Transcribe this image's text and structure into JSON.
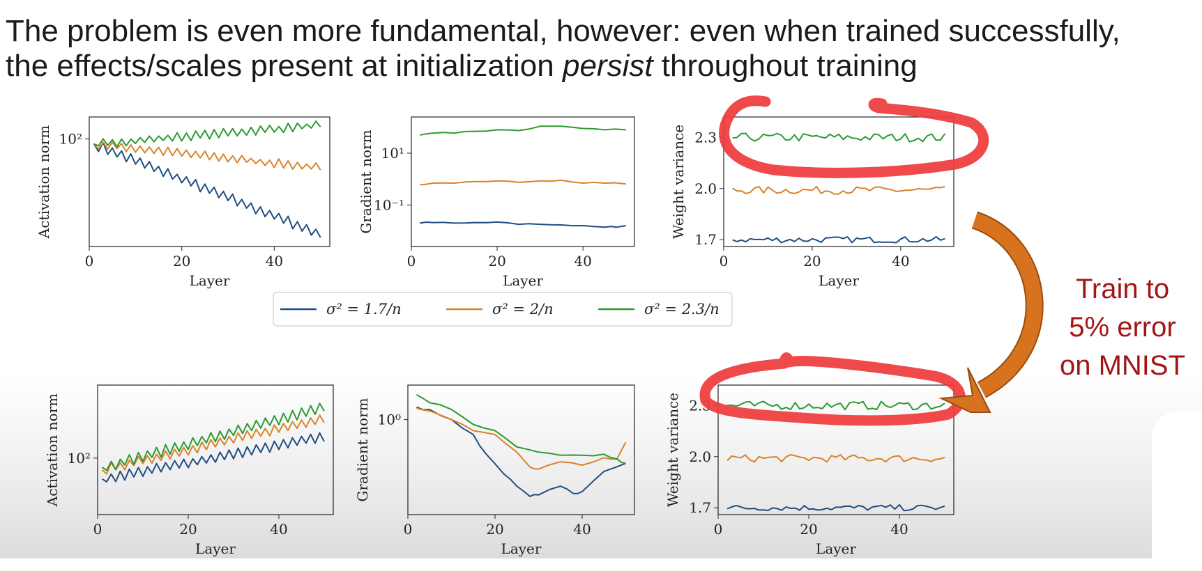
{
  "headline": {
    "line1": "The problem is even more fundamental, however: even when trained successfully,",
    "line2_before": "the effects/scales present at initialization ",
    "line2_emphasis": "persist",
    "line2_after": " throughout training"
  },
  "side_note": {
    "line1": "Train to",
    "line2": "5% error",
    "line3": "on MNIST"
  },
  "colors": {
    "blue": "#1f4e80",
    "orange": "#d9822b",
    "green": "#2a9a32",
    "highlight_red": "#ee3b3b",
    "arrow_orange": "#d7731f",
    "note_red": "#a31515"
  },
  "legend": [
    {
      "series": "sigma_1_7",
      "label": "σ² = 1.7/n"
    },
    {
      "series": "sigma_2",
      "label": "σ² = 2/n"
    },
    {
      "series": "sigma_2_3",
      "label": "σ² = 2.3/n"
    }
  ],
  "chart_data": [
    {
      "type": "line",
      "panel": "top-left",
      "xlabel": "Layer",
      "ylabel": "Activation norm",
      "xticks": [
        "0",
        "20",
        "40"
      ],
      "yscale": "log",
      "yticks": [
        "10²"
      ],
      "xlim": [
        0,
        52
      ],
      "ylim": [
        10,
        160
      ],
      "series": [
        {
          "key": "sigma_1_7",
          "pattern": "zigzag",
          "x_range": [
            1,
            50
          ],
          "start": 90,
          "end": 13,
          "amp": 0.09
        },
        {
          "key": "sigma_2",
          "pattern": "zigzag",
          "x_range": [
            1,
            50
          ],
          "start": 90,
          "end": 54,
          "amp": 0.07
        },
        {
          "key": "sigma_2_3",
          "pattern": "zigzag",
          "x_range": [
            1,
            50
          ],
          "start": 90,
          "end": 135,
          "amp": 0.07
        }
      ]
    },
    {
      "type": "line",
      "panel": "top-middle",
      "xlabel": "Layer",
      "ylabel": "Gradient norm",
      "xticks": [
        "0",
        "20",
        "40"
      ],
      "yscale": "log",
      "yticks": [
        "10¹",
        "10⁻¹"
      ],
      "xlim": [
        0,
        52
      ],
      "ylim": [
        0.0025,
        250
      ],
      "series": [
        {
          "key": "sigma_1_7",
          "pattern": "smooth",
          "x": [
            2,
            5,
            10,
            15,
            20,
            25,
            30,
            35,
            40,
            45,
            48,
            50
          ],
          "y": [
            0.02,
            0.021,
            0.02,
            0.021,
            0.022,
            0.018,
            0.018,
            0.017,
            0.016,
            0.014,
            0.014,
            0.016
          ]
        },
        {
          "key": "sigma_2",
          "pattern": "smooth",
          "x": [
            2,
            5,
            10,
            15,
            20,
            25,
            30,
            35,
            40,
            45,
            50
          ],
          "y": [
            0.6,
            0.7,
            0.7,
            0.8,
            0.85,
            0.75,
            0.85,
            0.9,
            0.7,
            0.7,
            0.65
          ]
        },
        {
          "key": "sigma_2_3",
          "pattern": "smooth",
          "x": [
            2,
            5,
            10,
            15,
            20,
            25,
            30,
            35,
            40,
            45,
            50
          ],
          "y": [
            50,
            60,
            60,
            70,
            80,
            75,
            110,
            110,
            90,
            80,
            80
          ]
        }
      ]
    },
    {
      "type": "line",
      "panel": "top-right",
      "xlabel": "Layer",
      "ylabel": "Weight variance",
      "xticks": [
        "0",
        "20",
        "40"
      ],
      "yticks": [
        "2.3",
        "2.0",
        "1.7"
      ],
      "xlim": [
        0,
        52
      ],
      "ylim": [
        1.66,
        2.42
      ],
      "series": [
        {
          "key": "sigma_1_7",
          "pattern": "noise",
          "x_range": [
            2,
            50
          ],
          "mean": 1.7,
          "amp": 0.018
        },
        {
          "key": "sigma_2",
          "pattern": "noise",
          "x_range": [
            2,
            50
          ],
          "mean": 1.99,
          "amp": 0.022
        },
        {
          "key": "sigma_2_3",
          "pattern": "noise",
          "x_range": [
            2,
            50
          ],
          "mean": 2.3,
          "amp": 0.025
        }
      ]
    },
    {
      "type": "line",
      "panel": "bottom-left",
      "xlabel": "Layer",
      "ylabel": "Activation norm",
      "xticks": [
        "0",
        "20",
        "40"
      ],
      "yscale": "log",
      "yticks": [
        "10²"
      ],
      "xlim": [
        0,
        52
      ],
      "ylim": [
        25,
        600
      ],
      "series": [
        {
          "key": "sigma_1_7",
          "pattern": "zigzag",
          "x_range": [
            1,
            50
          ],
          "start": 60,
          "end": 170,
          "amp": 0.1
        },
        {
          "key": "sigma_2",
          "pattern": "zigzag",
          "x_range": [
            1,
            50
          ],
          "start": 75,
          "end": 270,
          "amp": 0.1
        },
        {
          "key": "sigma_2_3",
          "pattern": "zigzag",
          "x_range": [
            1,
            50
          ],
          "start": 80,
          "end": 350,
          "amp": 0.11
        }
      ]
    },
    {
      "type": "line",
      "panel": "bottom-middle",
      "xlabel": "Layer",
      "ylabel": "Gradient norm",
      "xticks": [
        "0",
        "20",
        "40"
      ],
      "yscale": "log",
      "yticks": [
        "10⁰"
      ],
      "xlim": [
        0,
        52
      ],
      "ylim": [
        0.012,
        5
      ],
      "series": [
        {
          "key": "sigma_1_7",
          "pattern": "smooth",
          "x": [
            2,
            5,
            10,
            15,
            18,
            22,
            25,
            28,
            30,
            35,
            38,
            40,
            45,
            50
          ],
          "y": [
            1.8,
            1.6,
            1.0,
            0.5,
            0.2,
            0.08,
            0.045,
            0.028,
            0.03,
            0.045,
            0.032,
            0.035,
            0.09,
            0.13
          ]
        },
        {
          "key": "sigma_2",
          "pattern": "smooth",
          "x": [
            2,
            5,
            10,
            15,
            20,
            25,
            28,
            30,
            35,
            40,
            45,
            48,
            50
          ],
          "y": [
            1.7,
            1.5,
            1.0,
            0.6,
            0.5,
            0.22,
            0.11,
            0.1,
            0.14,
            0.12,
            0.17,
            0.16,
            0.35
          ]
        },
        {
          "key": "sigma_2_3",
          "pattern": "smooth",
          "x": [
            2,
            5,
            10,
            15,
            20,
            25,
            30,
            35,
            40,
            45,
            48,
            50
          ],
          "y": [
            3.2,
            2.2,
            1.6,
            0.8,
            0.6,
            0.28,
            0.22,
            0.19,
            0.19,
            0.2,
            0.16,
            0.13
          ]
        }
      ]
    },
    {
      "type": "line",
      "panel": "bottom-right",
      "xlabel": "Layer",
      "ylabel": "Weight variance",
      "xticks": [
        "0",
        "20",
        "40"
      ],
      "yticks": [
        "2.3",
        "2.0",
        "1.7"
      ],
      "xlim": [
        0,
        52
      ],
      "ylim": [
        1.66,
        2.42
      ],
      "series": [
        {
          "key": "sigma_1_7",
          "pattern": "noise",
          "x_range": [
            2,
            50
          ],
          "mean": 1.7,
          "amp": 0.018
        },
        {
          "key": "sigma_2",
          "pattern": "noise",
          "x_range": [
            2,
            50
          ],
          "mean": 1.99,
          "amp": 0.022
        },
        {
          "key": "sigma_2_3",
          "pattern": "noise",
          "x_range": [
            2,
            50
          ],
          "mean": 2.3,
          "amp": 0.025
        }
      ]
    }
  ]
}
